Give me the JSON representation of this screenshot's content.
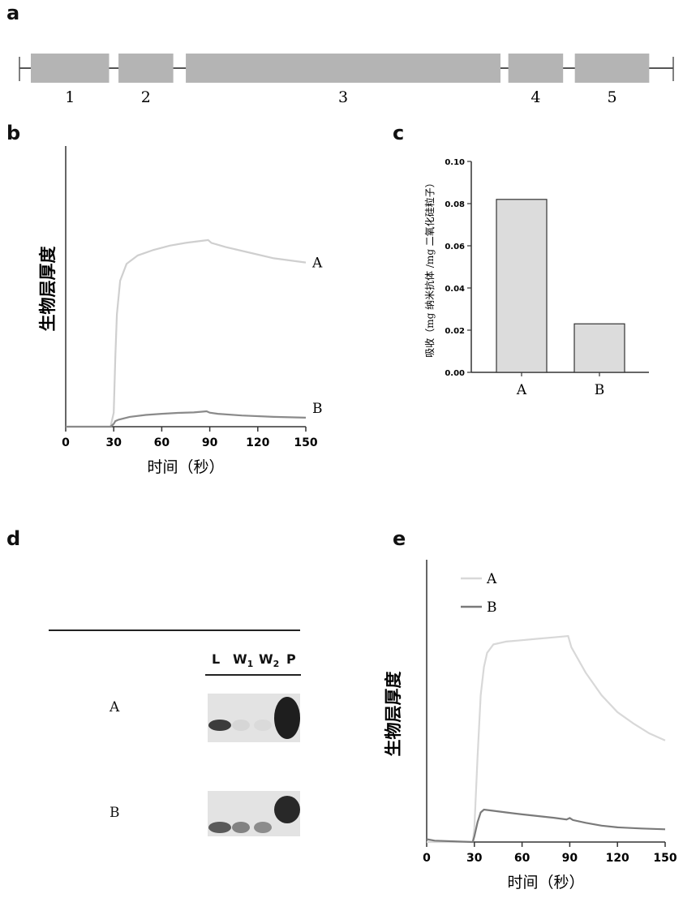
{
  "panels": {
    "a": "a",
    "b": "b",
    "c": "c",
    "d": "d",
    "e": "e"
  },
  "panel_a": {
    "exons": [
      {
        "label": "1",
        "start": 0.0,
        "end": 1.0
      },
      {
        "label": "2",
        "start": 1.12,
        "end": 1.82
      },
      {
        "label": "3",
        "start": 1.98,
        "end": 6.0
      },
      {
        "label": "4",
        "start": 6.1,
        "end": 6.8
      },
      {
        "label": "5",
        "start": 6.95,
        "end": 7.9
      }
    ]
  },
  "chart_data": [
    {
      "id": "b",
      "type": "line",
      "ylabel": "生物层厚度",
      "xlabel": "时间（秒）",
      "xlim": [
        0,
        150
      ],
      "xticks": [
        "0",
        "30",
        "60",
        "90",
        "120",
        "150"
      ],
      "ylim": [
        0,
        1
      ],
      "series": [
        {
          "name": "A",
          "color": "#cfcfcf",
          "x": [
            0,
            28,
            30,
            31,
            32,
            34,
            38,
            45,
            55,
            65,
            75,
            85,
            89,
            91,
            100,
            115,
            130,
            150
          ],
          "y": [
            0,
            0,
            0.05,
            0.25,
            0.4,
            0.52,
            0.58,
            0.61,
            0.63,
            0.645,
            0.655,
            0.662,
            0.665,
            0.655,
            0.64,
            0.62,
            0.6,
            0.585
          ]
        },
        {
          "name": "B",
          "color": "#8a8a8a",
          "x": [
            0,
            28,
            30,
            31,
            33,
            40,
            50,
            60,
            70,
            80,
            88,
            90,
            95,
            110,
            130,
            150
          ],
          "y": [
            0,
            0,
            0.01,
            0.02,
            0.025,
            0.035,
            0.042,
            0.046,
            0.049,
            0.051,
            0.055,
            0.05,
            0.046,
            0.04,
            0.035,
            0.032
          ]
        }
      ]
    },
    {
      "id": "c",
      "type": "bar",
      "ylabel": "吸收（mg 纳米抗体 /mg 二氧化硅粒子）",
      "categories": [
        "A",
        "B"
      ],
      "values": [
        0.082,
        0.023
      ],
      "ylim": [
        0,
        0.1
      ],
      "yticks": [
        "0.00",
        "0.02",
        "0.04",
        "0.06",
        "0.08",
        "0.10"
      ],
      "bar_color": "#dcdcdc"
    },
    {
      "id": "e",
      "type": "line",
      "ylabel": "生物层厚度",
      "xlabel": "时间（秒）",
      "xlim": [
        0,
        150
      ],
      "xticks": [
        "0",
        "30",
        "60",
        "90",
        "120",
        "150"
      ],
      "ylim": [
        0,
        1
      ],
      "legend": "top-left",
      "series": [
        {
          "name": "A",
          "color": "#d8d8d8",
          "x": [
            0,
            29,
            30,
            32,
            34,
            36,
            38,
            42,
            50,
            60,
            70,
            80,
            89,
            91,
            100,
            110,
            120,
            130,
            140,
            150
          ],
          "y": [
            0,
            0,
            0.05,
            0.3,
            0.52,
            0.62,
            0.67,
            0.7,
            0.71,
            0.715,
            0.72,
            0.725,
            0.73,
            0.69,
            0.6,
            0.52,
            0.46,
            0.42,
            0.385,
            0.36
          ]
        },
        {
          "name": "B",
          "color": "#7a7a7a",
          "x": [
            0,
            5,
            29,
            30,
            32,
            34,
            36,
            40,
            50,
            60,
            70,
            80,
            88,
            90,
            92,
            100,
            110,
            120,
            135,
            150
          ],
          "y": [
            0.01,
            0.005,
            0,
            0.02,
            0.07,
            0.105,
            0.115,
            0.112,
            0.105,
            0.098,
            0.092,
            0.086,
            0.08,
            0.085,
            0.078,
            0.068,
            0.058,
            0.052,
            0.048,
            0.045
          ]
        }
      ]
    }
  ],
  "panel_d": {
    "lanes": [
      "L",
      "W",
      "W",
      "P"
    ],
    "lane_subscripts": [
      "",
      "1",
      "2",
      ""
    ],
    "rows": [
      {
        "label": "A",
        "bands": [
          0.85,
          0.08,
          0.06,
          1.0
        ]
      },
      {
        "label": "B",
        "bands": [
          0.7,
          0.5,
          0.45,
          0.95
        ]
      }
    ]
  }
}
